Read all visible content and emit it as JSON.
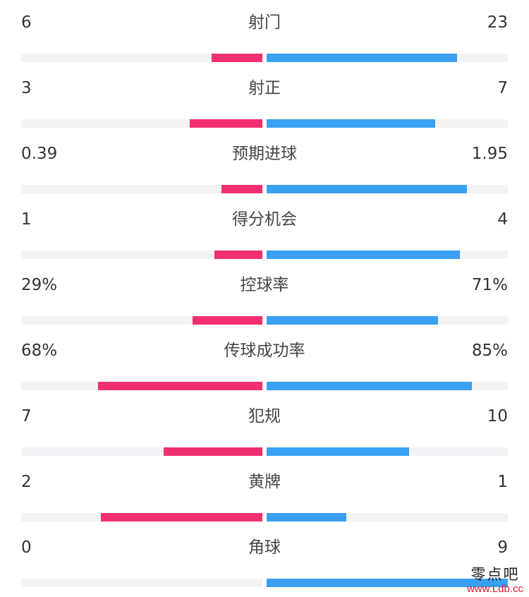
{
  "stats": [
    {
      "label": "射门",
      "left": "6",
      "right": "23",
      "left_fill": 0.21,
      "right_fill": 0.79
    },
    {
      "label": "射正",
      "left": "3",
      "right": "7",
      "left_fill": 0.3,
      "right_fill": 0.7
    },
    {
      "label": "预期进球",
      "left": "0.39",
      "right": "1.95",
      "left_fill": 0.17,
      "right_fill": 0.83
    },
    {
      "label": "得分机会",
      "left": "1",
      "right": "4",
      "left_fill": 0.2,
      "right_fill": 0.8
    },
    {
      "label": "控球率",
      "left": "29%",
      "right": "71%",
      "left_fill": 0.29,
      "right_fill": 0.71
    },
    {
      "label": "传球成功率",
      "left": "68%",
      "right": "85%",
      "left_fill": 0.68,
      "right_fill": 0.85
    },
    {
      "label": "犯规",
      "left": "7",
      "right": "10",
      "left_fill": 0.41,
      "right_fill": 0.59
    },
    {
      "label": "黄牌",
      "left": "2",
      "right": "1",
      "left_fill": 0.67,
      "right_fill": 0.33
    },
    {
      "label": "角球",
      "left": "0",
      "right": "9",
      "left_fill": 0.0,
      "right_fill": 1.0
    }
  ],
  "colors": {
    "left_team": "#f0306f",
    "right_team": "#3aa0f2",
    "track": "#f2f3f5"
  },
  "watermark": {
    "name": "零点吧",
    "url": "www.Ldb.cc"
  }
}
